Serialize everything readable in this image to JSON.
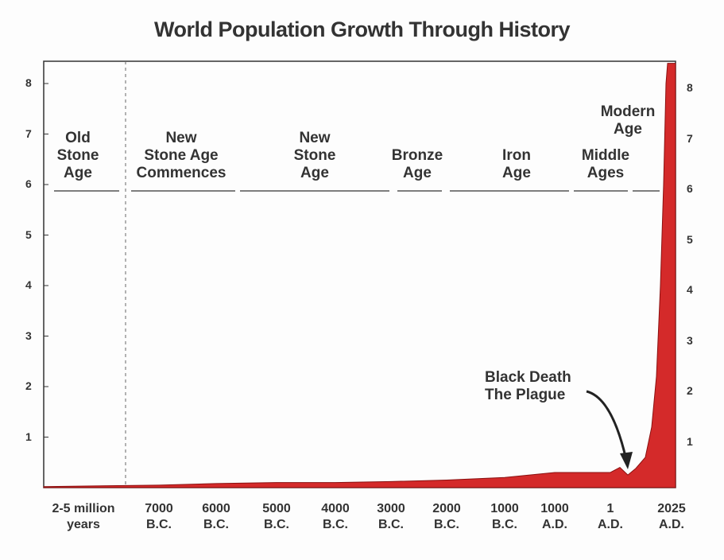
{
  "chart_data": {
    "type": "area",
    "title": "World Population Growth Through History",
    "xlabel": "",
    "ylabel": "",
    "categories": [
      "2-5 million years",
      "7000 B.C.",
      "6000 B.C.",
      "5000 B.C.",
      "4000 B.C.",
      "3000 B.C.",
      "2000 B.C.",
      "1000 B.C.",
      "1000 A.D.",
      "1 A.D.",
      "2025 A.D."
    ],
    "category_lines": [
      [
        "2-5 million",
        "years"
      ],
      [
        "7000",
        "B.C."
      ],
      [
        "6000",
        "B.C."
      ],
      [
        "5000",
        "B.C."
      ],
      [
        "4000",
        "B.C."
      ],
      [
        "3000",
        "B.C."
      ],
      [
        "2000",
        "B.C."
      ],
      [
        "1000",
        "B.C."
      ],
      [
        "1000",
        "A.D."
      ],
      [
        "1",
        "A.D."
      ],
      [
        "2025",
        "A.D."
      ]
    ],
    "values": [
      0.01,
      0.05,
      0.08,
      0.1,
      0.1,
      0.12,
      0.15,
      0.2,
      0.3,
      0.3,
      8.0
    ],
    "ylim": [
      0,
      8.5
    ],
    "yticks": [
      "1",
      "2",
      "3",
      "4",
      "5",
      "6",
      "7",
      "8"
    ],
    "right_yticks": [
      "1",
      "2",
      "3",
      "4",
      "5",
      "6",
      "7",
      "8"
    ],
    "fill_color": "#d42a2a",
    "eras": [
      {
        "lines": [
          "Old",
          "Stone",
          "Age"
        ]
      },
      {
        "lines": [
          "New",
          "Stone Age",
          "Commences"
        ]
      },
      {
        "lines": [
          "New",
          "Stone",
          "Age"
        ]
      },
      {
        "lines": [
          "Bronze",
          "Age"
        ]
      },
      {
        "lines": [
          "Iron",
          "Age"
        ]
      },
      {
        "lines": [
          "Middle",
          "Ages"
        ]
      },
      {
        "lines": [
          "Modern",
          "Age"
        ]
      }
    ],
    "annotation": {
      "lines": [
        "Black Death",
        "The Plague"
      ],
      "category": "1 A.D.",
      "value": 0.3
    }
  }
}
